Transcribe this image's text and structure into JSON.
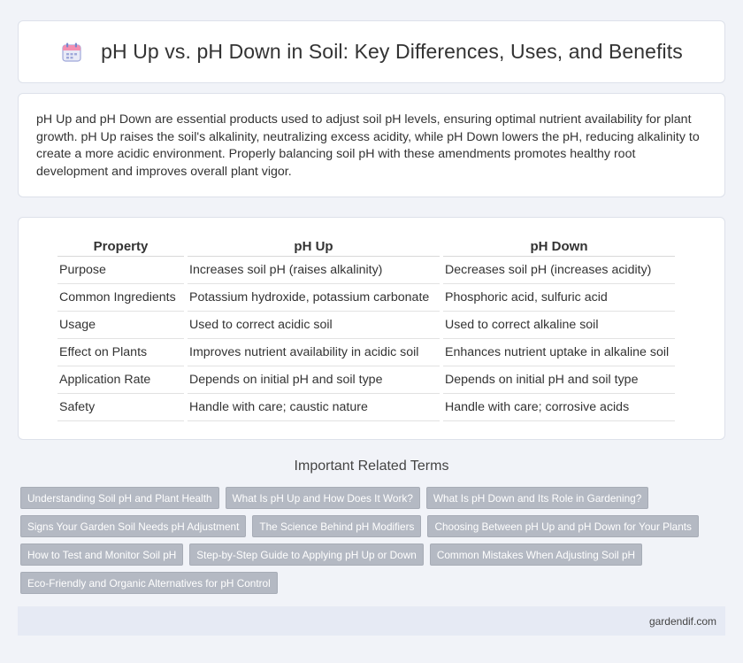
{
  "header": {
    "title": "pH Up vs. pH Down in Soil: Key Differences, Uses, and Benefits",
    "icon": "calendar-icon"
  },
  "intro": {
    "text": "pH Up and pH Down are essential products used to adjust soil pH levels, ensuring optimal nutrient availability for plant growth. pH Up raises the soil's alkalinity, neutralizing excess acidity, while pH Down lowers the pH, reducing alkalinity to create a more acidic environment. Properly balancing soil pH with these amendments promotes healthy root development and improves overall plant vigor."
  },
  "table": {
    "headers": [
      "Property",
      "pH Up",
      "pH Down"
    ],
    "rows": [
      [
        "Purpose",
        "Increases soil pH (raises alkalinity)",
        "Decreases soil pH (increases acidity)"
      ],
      [
        "Common Ingredients",
        "Potassium hydroxide, potassium carbonate",
        "Phosphoric acid, sulfuric acid"
      ],
      [
        "Usage",
        "Used to correct acidic soil",
        "Used to correct alkaline soil"
      ],
      [
        "Effect on Plants",
        "Improves nutrient availability in acidic soil",
        "Enhances nutrient uptake in alkaline soil"
      ],
      [
        "Application Rate",
        "Depends on initial pH and soil type",
        "Depends on initial pH and soil type"
      ],
      [
        "Safety",
        "Handle with care; caustic nature",
        "Handle with care; corrosive acids"
      ]
    ]
  },
  "related": {
    "title": "Important Related Terms",
    "tags": [
      "Understanding Soil pH and Plant Health",
      "What Is pH Up and How Does It Work?",
      "What Is pH Down and Its Role in Gardening?",
      "Signs Your Garden Soil Needs pH Adjustment",
      "The Science Behind pH Modifiers",
      "Choosing Between pH Up and pH Down for Your Plants",
      "How to Test and Monitor Soil pH",
      "Step-by-Step Guide to Applying pH Up or Down",
      "Common Mistakes When Adjusting Soil pH",
      "Eco-Friendly and Organic Alternatives for pH Control"
    ]
  },
  "footer": {
    "site": "gardendif.com"
  },
  "colors": {
    "background": "#f1f3f8",
    "tag_bg": "#b4b9c3",
    "footer_bg": "#e6eaf4"
  }
}
